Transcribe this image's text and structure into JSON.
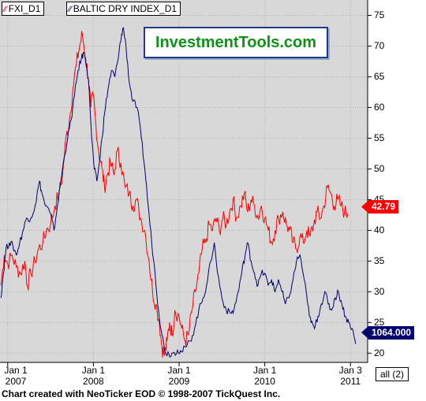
{
  "legend": {
    "series1": "FXI_D1",
    "series2": "BALTIC DRY INDEX_D1"
  },
  "brand": "InvestmentTools.com",
  "all_button": "all (2)",
  "footer": "Chart created with NeoTicker EOD © 1998-2007 TickQuest Inc.",
  "colors": {
    "fxi": "#ff0000",
    "bdi": "#00006e",
    "plot_bg": "#d8d8d8",
    "grid": "#b0b0b0"
  },
  "chart_data": {
    "type": "line",
    "y_axis": {
      "ticks": [
        20,
        25,
        30,
        35,
        40,
        45,
        50,
        55,
        60,
        65,
        70,
        75
      ],
      "ylim": [
        18.5,
        77.5
      ],
      "side": "right"
    },
    "x_axis": {
      "ticks": [
        {
          "line1": "Jan 1",
          "line2": "2007"
        },
        {
          "line1": "Jan 1",
          "line2": "2008"
        },
        {
          "line1": "Jan 1",
          "line2": "2009"
        },
        {
          "line1": "Jan 1",
          "line2": "2010"
        },
        {
          "line1": "Jan 3",
          "line2": "2011"
        }
      ]
    },
    "grid": true,
    "series": [
      {
        "name": "FXI_D1",
        "last_value": "42.79",
        "points": [
          [
            2006.92,
            31
          ],
          [
            2006.96,
            36
          ],
          [
            2007.0,
            34.5
          ],
          [
            2007.05,
            36
          ],
          [
            2007.1,
            34
          ],
          [
            2007.15,
            33
          ],
          [
            2007.2,
            35
          ],
          [
            2007.23,
            31
          ],
          [
            2007.27,
            33
          ],
          [
            2007.32,
            35
          ],
          [
            2007.36,
            37
          ],
          [
            2007.41,
            38
          ],
          [
            2007.45,
            40
          ],
          [
            2007.5,
            41
          ],
          [
            2007.55,
            44
          ],
          [
            2007.6,
            46
          ],
          [
            2007.64,
            49
          ],
          [
            2007.68,
            55
          ],
          [
            2007.72,
            58
          ],
          [
            2007.76,
            63
          ],
          [
            2007.8,
            67
          ],
          [
            2007.84,
            70
          ],
          [
            2007.87,
            72
          ],
          [
            2007.91,
            68
          ],
          [
            2007.94,
            65
          ],
          [
            2007.97,
            60
          ],
          [
            2008.0,
            62
          ],
          [
            2008.03,
            57
          ],
          [
            2008.06,
            53
          ],
          [
            2008.1,
            50
          ],
          [
            2008.13,
            47
          ],
          [
            2008.16,
            49
          ],
          [
            2008.2,
            51
          ],
          [
            2008.24,
            49
          ],
          [
            2008.28,
            53
          ],
          [
            2008.32,
            51
          ],
          [
            2008.37,
            47
          ],
          [
            2008.42,
            46
          ],
          [
            2008.46,
            44
          ],
          [
            2008.5,
            45
          ],
          [
            2008.55,
            42
          ],
          [
            2008.6,
            40
          ],
          [
            2008.65,
            35
          ],
          [
            2008.69,
            30
          ],
          [
            2008.73,
            28
          ],
          [
            2008.77,
            25
          ],
          [
            2008.8,
            21
          ],
          [
            2008.83,
            19.7
          ],
          [
            2008.86,
            22
          ],
          [
            2008.89,
            25
          ],
          [
            2008.92,
            23
          ],
          [
            2008.95,
            27
          ],
          [
            2009.0,
            26
          ],
          [
            2009.03,
            24
          ],
          [
            2009.07,
            22
          ],
          [
            2009.11,
            23
          ],
          [
            2009.15,
            27
          ],
          [
            2009.19,
            30
          ],
          [
            2009.23,
            33
          ],
          [
            2009.27,
            37
          ],
          [
            2009.31,
            38
          ],
          [
            2009.35,
            41
          ],
          [
            2009.39,
            40
          ],
          [
            2009.43,
            42
          ],
          [
            2009.47,
            40
          ],
          [
            2009.51,
            42
          ],
          [
            2009.55,
            41
          ],
          [
            2009.59,
            43
          ],
          [
            2009.63,
            45
          ],
          [
            2009.67,
            42
          ],
          [
            2009.72,
            44
          ],
          [
            2009.76,
            46
          ],
          [
            2009.8,
            43
          ],
          [
            2009.84,
            45
          ],
          [
            2009.88,
            44
          ],
          [
            2009.92,
            42
          ],
          [
            2009.96,
            44
          ],
          [
            2010.0,
            42
          ],
          [
            2010.04,
            40
          ],
          [
            2010.08,
            38
          ],
          [
            2010.12,
            40
          ],
          [
            2010.16,
            42
          ],
          [
            2010.21,
            43
          ],
          [
            2010.25,
            41
          ],
          [
            2010.29,
            40
          ],
          [
            2010.33,
            38
          ],
          [
            2010.37,
            37
          ],
          [
            2010.41,
            39
          ],
          [
            2010.45,
            38
          ],
          [
            2010.49,
            40
          ],
          [
            2010.53,
            39
          ],
          [
            2010.57,
            41
          ],
          [
            2010.61,
            43
          ],
          [
            2010.65,
            42
          ],
          [
            2010.69,
            44
          ],
          [
            2010.73,
            47
          ],
          [
            2010.77,
            46
          ],
          [
            2010.81,
            44
          ],
          [
            2010.85,
            45
          ],
          [
            2010.89,
            44
          ],
          [
            2010.93,
            43
          ],
          [
            2010.97,
            42.79
          ]
        ]
      },
      {
        "name": "BALTIC DRY INDEX_D1",
        "last_value": "1064.000",
        "points": [
          [
            2006.92,
            29
          ],
          [
            2006.95,
            33
          ],
          [
            2006.98,
            37
          ],
          [
            2007.02,
            38
          ],
          [
            2007.06,
            37.5
          ],
          [
            2007.1,
            36
          ],
          [
            2007.14,
            38
          ],
          [
            2007.18,
            40
          ],
          [
            2007.22,
            42
          ],
          [
            2007.27,
            42
          ],
          [
            2007.32,
            44
          ],
          [
            2007.37,
            48
          ],
          [
            2007.4,
            46
          ],
          [
            2007.44,
            44
          ],
          [
            2007.49,
            43
          ],
          [
            2007.54,
            40
          ],
          [
            2007.58,
            44
          ],
          [
            2007.62,
            48
          ],
          [
            2007.66,
            52
          ],
          [
            2007.7,
            55
          ],
          [
            2007.74,
            58
          ],
          [
            2007.78,
            62
          ],
          [
            2007.82,
            66
          ],
          [
            2007.86,
            68
          ],
          [
            2007.89,
            69
          ],
          [
            2007.92,
            67
          ],
          [
            2007.95,
            63
          ],
          [
            2007.98,
            55
          ],
          [
            2008.01,
            50
          ],
          [
            2008.04,
            48
          ],
          [
            2008.07,
            51
          ],
          [
            2008.1,
            55
          ],
          [
            2008.13,
            59
          ],
          [
            2008.17,
            63
          ],
          [
            2008.21,
            66
          ],
          [
            2008.25,
            65
          ],
          [
            2008.29,
            68
          ],
          [
            2008.33,
            72
          ],
          [
            2008.35,
            73
          ],
          [
            2008.38,
            70
          ],
          [
            2008.42,
            64
          ],
          [
            2008.46,
            61
          ],
          [
            2008.51,
            60
          ],
          [
            2008.56,
            55
          ],
          [
            2008.6,
            50
          ],
          [
            2008.64,
            44
          ],
          [
            2008.68,
            38
          ],
          [
            2008.72,
            33
          ],
          [
            2008.76,
            27
          ],
          [
            2008.8,
            23
          ],
          [
            2008.84,
            20.2
          ],
          [
            2008.88,
            19.9
          ],
          [
            2008.93,
            20
          ],
          [
            2008.98,
            20.5
          ],
          [
            2009.03,
            20.2
          ],
          [
            2009.08,
            21
          ],
          [
            2009.13,
            22
          ],
          [
            2009.18,
            24
          ],
          [
            2009.23,
            27
          ],
          [
            2009.28,
            29
          ],
          [
            2009.32,
            31
          ],
          [
            2009.37,
            35
          ],
          [
            2009.41,
            38
          ],
          [
            2009.45,
            33
          ],
          [
            2009.5,
            29
          ],
          [
            2009.55,
            27
          ],
          [
            2009.6,
            26.5
          ],
          [
            2009.64,
            27
          ],
          [
            2009.69,
            30
          ],
          [
            2009.73,
            33
          ],
          [
            2009.77,
            36
          ],
          [
            2009.8,
            38
          ],
          [
            2009.84,
            35
          ],
          [
            2009.88,
            33
          ],
          [
            2009.92,
            31
          ],
          [
            2009.96,
            33
          ],
          [
            2010.0,
            33
          ],
          [
            2010.04,
            31
          ],
          [
            2010.08,
            32
          ],
          [
            2010.12,
            30
          ],
          [
            2010.16,
            32
          ],
          [
            2010.2,
            30
          ],
          [
            2010.24,
            28
          ],
          [
            2010.28,
            29
          ],
          [
            2010.33,
            32
          ],
          [
            2010.37,
            35
          ],
          [
            2010.41,
            36
          ],
          [
            2010.46,
            32
          ],
          [
            2010.5,
            28
          ],
          [
            2010.54,
            25
          ],
          [
            2010.58,
            24
          ],
          [
            2010.62,
            26
          ],
          [
            2010.66,
            28
          ],
          [
            2010.7,
            30
          ],
          [
            2010.74,
            28
          ],
          [
            2010.78,
            27
          ],
          [
            2010.82,
            29
          ],
          [
            2010.86,
            30
          ],
          [
            2010.9,
            28
          ],
          [
            2010.94,
            26
          ],
          [
            2010.98,
            25
          ],
          [
            2011.02,
            24
          ],
          [
            2011.06,
            21.5
          ]
        ]
      }
    ]
  }
}
